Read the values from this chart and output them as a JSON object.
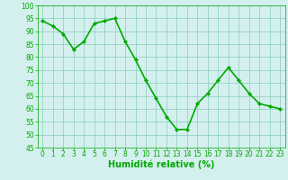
{
  "x": [
    0,
    1,
    2,
    3,
    4,
    5,
    6,
    7,
    8,
    9,
    10,
    11,
    12,
    13,
    14,
    15,
    16,
    17,
    18,
    19,
    20,
    21,
    22,
    23
  ],
  "y": [
    94,
    92,
    89,
    83,
    86,
    93,
    94,
    95,
    86,
    79,
    71,
    64,
    57,
    52,
    52,
    62,
    66,
    71,
    76,
    71,
    66,
    62,
    61,
    60
  ],
  "line_color": "#00aa00",
  "marker": "D",
  "marker_size": 2.2,
  "marker_color": "#00aa00",
  "bg_color": "#d4f0ee",
  "grid_color": "#88ccbb",
  "xlabel": "Humidité relative (%)",
  "xlabel_color": "#00aa00",
  "tick_color": "#00aa00",
  "ylim": [
    45,
    100
  ],
  "yticks": [
    45,
    50,
    55,
    60,
    65,
    70,
    75,
    80,
    85,
    90,
    95,
    100
  ],
  "xlim": [
    -0.5,
    23.5
  ],
  "xticks": [
    0,
    1,
    2,
    3,
    4,
    5,
    6,
    7,
    8,
    9,
    10,
    11,
    12,
    13,
    14,
    15,
    16,
    17,
    18,
    19,
    20,
    21,
    22,
    23
  ],
  "line_width": 1.2,
  "xlabel_fontsize": 7,
  "tick_fontsize": 5.5
}
